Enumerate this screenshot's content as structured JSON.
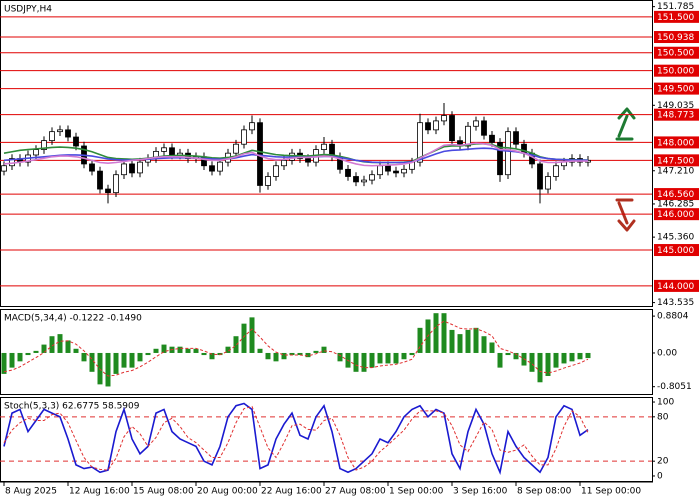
{
  "chart_data": [
    {
      "type": "candlestick",
      "title": "USDJPY,H4",
      "categories": [
        "8 Aug 2025",
        null,
        null,
        null,
        null,
        null,
        null,
        null,
        "12 Aug 16:00",
        null,
        null,
        null,
        null,
        null,
        null,
        null,
        "15 Aug 08:00",
        null,
        null,
        null,
        null,
        null,
        null,
        null,
        "20 Aug 00:00",
        null,
        null,
        null,
        null,
        null,
        null,
        null,
        "22 Aug 16:00",
        null,
        null,
        null,
        null,
        null,
        null,
        null,
        "27 Aug 08:00",
        null,
        null,
        null,
        null,
        null,
        null,
        null,
        "1 Sep 00:00",
        null,
        null,
        null,
        null,
        null,
        null,
        null,
        "3 Sep 16:00",
        null,
        null,
        null,
        null,
        null,
        null,
        null,
        "8 Sep 08:00",
        null,
        null,
        null,
        null,
        null,
        null,
        null,
        "11 Sep 00:00",
        null
      ],
      "open": [
        147.2,
        147.35,
        147.55,
        147.45,
        147.65,
        147.8,
        148.05,
        148.3,
        148.35,
        148.15,
        147.9,
        147.4,
        147.2,
        146.7,
        146.6,
        147.1,
        147.4,
        147.15,
        147.45,
        147.55,
        147.75,
        147.85,
        147.65,
        147.7,
        147.55,
        147.6,
        147.35,
        147.2,
        147.45,
        147.7,
        147.95,
        148.35,
        148.55,
        146.8,
        147.05,
        147.35,
        147.5,
        147.7,
        147.55,
        147.45,
        147.8,
        147.95,
        147.6,
        147.25,
        147.05,
        146.9,
        146.95,
        147.1,
        147.35,
        147.2,
        147.15,
        147.25,
        147.45,
        148.55,
        148.35,
        148.6,
        148.75,
        148.05,
        147.9,
        148.45,
        148.6,
        148.2,
        148.0,
        147.1,
        148.3,
        147.95,
        147.7,
        147.4,
        146.7,
        147.05,
        147.35,
        147.45,
        147.55,
        147.45
      ],
      "high": [
        147.47,
        147.67,
        147.67,
        147.77,
        147.92,
        148.17,
        148.42,
        148.47,
        148.47,
        148.27,
        148.02,
        147.52,
        147.32,
        146.82,
        147.22,
        147.52,
        147.52,
        147.57,
        147.67,
        147.87,
        147.97,
        147.97,
        147.82,
        147.82,
        147.72,
        147.72,
        147.47,
        147.57,
        147.82,
        148.07,
        148.47,
        148.75,
        148.67,
        147.17,
        147.47,
        147.62,
        147.82,
        147.82,
        147.67,
        147.92,
        148.15,
        148.07,
        147.72,
        147.37,
        147.17,
        147.07,
        147.22,
        147.47,
        147.47,
        147.32,
        147.37,
        147.57,
        148.8,
        148.67,
        148.72,
        149.1,
        148.87,
        148.17,
        148.57,
        148.72,
        148.72,
        148.32,
        148.12,
        148.42,
        148.42,
        148.07,
        147.82,
        147.52,
        147.17,
        147.47,
        147.57,
        147.67,
        147.67,
        147.62
      ],
      "low": [
        147.08,
        147.23,
        147.33,
        147.33,
        147.53,
        147.68,
        147.93,
        148.18,
        148.03,
        147.78,
        147.28,
        147.08,
        146.58,
        146.3,
        146.48,
        146.98,
        147.03,
        147.03,
        147.33,
        147.43,
        147.63,
        147.53,
        147.53,
        147.43,
        147.43,
        147.23,
        147.08,
        147.08,
        147.33,
        147.58,
        147.83,
        148.23,
        146.6,
        146.68,
        146.93,
        147.23,
        147.38,
        147.43,
        147.33,
        147.33,
        147.68,
        147.48,
        147.13,
        146.93,
        146.78,
        146.78,
        146.83,
        146.98,
        147.08,
        147.03,
        147.03,
        147.13,
        147.33,
        148.23,
        148.23,
        148.48,
        147.93,
        147.78,
        147.78,
        148.33,
        148.08,
        147.88,
        146.9,
        146.98,
        147.83,
        147.58,
        147.28,
        146.3,
        146.58,
        146.93,
        147.23,
        147.33,
        147.33,
        147.33
      ],
      "close": [
        147.35,
        147.55,
        147.45,
        147.65,
        147.8,
        148.05,
        148.3,
        148.35,
        148.15,
        147.9,
        147.4,
        147.2,
        146.7,
        146.6,
        147.1,
        147.4,
        147.15,
        147.45,
        147.55,
        147.75,
        147.85,
        147.65,
        147.7,
        147.55,
        147.6,
        147.35,
        147.2,
        147.45,
        147.7,
        147.95,
        148.35,
        148.55,
        146.8,
        147.05,
        147.35,
        147.5,
        147.7,
        147.55,
        147.45,
        147.8,
        147.95,
        147.6,
        147.25,
        147.05,
        146.9,
        146.95,
        147.1,
        147.35,
        147.2,
        147.15,
        147.25,
        147.45,
        148.55,
        148.35,
        148.6,
        148.75,
        148.05,
        147.9,
        148.45,
        148.6,
        148.2,
        148.0,
        147.1,
        148.3,
        147.95,
        147.7,
        147.4,
        146.7,
        147.05,
        147.35,
        147.45,
        147.55,
        147.45,
        147.5
      ],
      "up_color": "#ffffff",
      "down_color": "#000000",
      "outline_color": "#000000",
      "series": [
        {
          "type": "line",
          "color": "#2e8b3a",
          "values": [
            147.7,
            147.74,
            147.78,
            147.8,
            147.82,
            147.84,
            147.86,
            147.87,
            147.86,
            147.84,
            147.8,
            147.74,
            147.66,
            147.58,
            147.55,
            147.54,
            147.53,
            147.54,
            147.56,
            147.59,
            147.62,
            147.63,
            147.64,
            147.63,
            147.62,
            147.6,
            147.57,
            147.56,
            147.58,
            147.62,
            147.7,
            147.78,
            147.74,
            147.7,
            147.66,
            147.64,
            147.63,
            147.63,
            147.62,
            147.64,
            147.66,
            147.65,
            147.61,
            147.56,
            147.5,
            147.46,
            147.44,
            147.44,
            147.44,
            147.44,
            147.45,
            147.47,
            147.58,
            147.68,
            147.78,
            147.88,
            147.9,
            147.9,
            147.93,
            147.96,
            147.96,
            147.94,
            147.86,
            147.85,
            147.82,
            147.77,
            147.7,
            147.6,
            147.55,
            147.53,
            147.52,
            147.52,
            147.51,
            147.51
          ]
        },
        {
          "type": "line",
          "color": "#4a4ae0",
          "values": [
            147.5,
            147.52,
            147.54,
            147.56,
            147.58,
            147.6,
            147.62,
            147.64,
            147.65,
            147.65,
            147.64,
            147.62,
            147.58,
            147.54,
            147.52,
            147.51,
            147.51,
            147.52,
            147.53,
            147.55,
            147.56,
            147.57,
            147.57,
            147.57,
            147.56,
            147.55,
            147.54,
            147.53,
            147.54,
            147.57,
            147.62,
            147.66,
            147.64,
            147.62,
            147.6,
            147.59,
            147.59,
            147.59,
            147.59,
            147.6,
            147.61,
            147.61,
            147.58,
            147.54,
            147.5,
            147.47,
            147.45,
            147.44,
            147.44,
            147.44,
            147.44,
            147.46,
            147.52,
            147.6,
            147.68,
            147.75,
            147.78,
            147.79,
            147.81,
            147.83,
            147.84,
            147.83,
            147.78,
            147.76,
            147.74,
            147.7,
            147.65,
            147.58,
            147.55,
            147.53,
            147.52,
            147.51,
            147.51,
            147.5
          ]
        },
        {
          "type": "line",
          "color": "#d27ad2",
          "values": [
            147.4,
            147.42,
            147.45,
            147.48,
            147.52,
            147.56,
            147.6,
            147.62,
            147.62,
            147.6,
            147.56,
            147.5,
            147.44,
            147.42,
            147.44,
            147.47,
            147.5,
            147.52,
            147.55,
            147.58,
            147.6,
            147.6,
            147.6,
            147.58,
            147.56,
            147.53,
            147.5,
            147.5,
            147.54,
            147.6,
            147.68,
            147.72,
            147.62,
            147.55,
            147.52,
            147.53,
            147.56,
            147.58,
            147.58,
            147.6,
            147.62,
            147.6,
            147.54,
            147.46,
            147.4,
            147.36,
            147.35,
            147.36,
            147.37,
            147.38,
            147.4,
            147.44,
            147.56,
            147.68,
            147.8,
            147.92,
            147.94,
            147.92,
            147.95,
            147.98,
            147.96,
            147.92,
            147.8,
            147.8,
            147.76,
            147.7,
            147.6,
            147.48,
            147.44,
            147.44,
            147.46,
            147.48,
            147.48,
            147.48
          ]
        }
      ],
      "ylim": [
        143.44,
        151.97
      ],
      "yticks": [
        {
          "value": 151.785,
          "label": "151.785"
        },
        {
          "value": 149.035,
          "label": "149.035"
        },
        {
          "value": 147.21,
          "label": "147.210"
        },
        {
          "value": 146.285,
          "label": "146.285"
        },
        {
          "value": 145.36,
          "label": "145.360"
        },
        {
          "value": 143.535,
          "label": "143.535"
        }
      ],
      "level_color": "#e00000",
      "levels": [
        {
          "value": 151.5,
          "label": "151.500"
        },
        {
          "value": 150.938,
          "label": "150.938"
        },
        {
          "value": 150.5,
          "label": "150.500"
        },
        {
          "value": 150,
          "label": "150.000"
        },
        {
          "value": 149.5,
          "label": "149.500"
        },
        {
          "value": 148.773,
          "label": "148.773"
        },
        {
          "value": 148,
          "label": "148.000"
        },
        {
          "value": 147.5,
          "label": "147.500"
        },
        {
          "value": 146.56,
          "label": "146.560"
        },
        {
          "value": 146,
          "label": "146.000"
        },
        {
          "value": 145,
          "label": "145.000"
        },
        {
          "value": 144,
          "label": "144.000"
        }
      ]
    },
    {
      "type": "bar",
      "title": "MACD(5,34,4) -0.1222 -0.1490",
      "series": [
        {
          "type": "bar",
          "color": "#1f8a1f",
          "values": [
            -0.5,
            -0.35,
            -0.2,
            -0.05,
            0.05,
            0.2,
            0.4,
            0.45,
            0.3,
            0.1,
            -0.2,
            -0.45,
            -0.75,
            -0.8,
            -0.5,
            -0.35,
            -0.35,
            -0.2,
            -0.05,
            0.1,
            0.2,
            0.15,
            0.15,
            0.1,
            0.1,
            -0.05,
            -0.15,
            -0.05,
            0.15,
            0.4,
            0.7,
            0.85,
            0.1,
            -0.15,
            -0.2,
            -0.15,
            -0.05,
            -0.05,
            -0.1,
            0.05,
            0.15,
            0.0,
            -0.2,
            -0.35,
            -0.45,
            -0.45,
            -0.35,
            -0.25,
            -0.25,
            -0.25,
            -0.15,
            -0.05,
            0.6,
            0.8,
            0.95,
            0.95,
            0.55,
            0.45,
            0.55,
            0.6,
            0.4,
            0.25,
            -0.35,
            -0.05,
            -0.15,
            -0.3,
            -0.45,
            -0.7,
            -0.55,
            -0.35,
            -0.25,
            -0.2,
            -0.15,
            -0.1222
          ]
        },
        {
          "type": "line",
          "color": "#e03030",
          "dash": true,
          "values": [
            -0.45,
            -0.41,
            -0.33,
            -0.22,
            -0.11,
            0.01,
            0.17,
            0.28,
            0.29,
            0.21,
            0.05,
            -0.15,
            -0.39,
            -0.55,
            -0.53,
            -0.46,
            -0.42,
            -0.33,
            -0.22,
            -0.09,
            0.03,
            0.08,
            0.11,
            0.11,
            0.11,
            0.05,
            -0.03,
            -0.04,
            0.04,
            0.18,
            0.39,
            0.57,
            0.38,
            0.17,
            0.02,
            -0.05,
            -0.05,
            -0.05,
            -0.07,
            -0.02,
            0.05,
            0.03,
            -0.06,
            -0.18,
            -0.29,
            -0.35,
            -0.35,
            -0.31,
            -0.29,
            -0.27,
            -0.22,
            -0.15,
            0.15,
            0.41,
            0.63,
            0.76,
            0.68,
            0.59,
            0.57,
            0.58,
            0.51,
            0.41,
            0.11,
            0.05,
            -0.03,
            -0.14,
            -0.26,
            -0.44,
            -0.48,
            -0.43,
            -0.36,
            -0.3,
            -0.24,
            -0.149
          ]
        }
      ],
      "ylim": [
        -0.98,
        1.05
      ],
      "yticks": [
        0.8804,
        {
          "value": 0,
          "label": "0.00"
        },
        -0.8051
      ]
    },
    {
      "type": "line",
      "title": "Stoch(5,3,3) 62.6775 58.5909",
      "series": [
        {
          "type": "line",
          "color": "#1a1ad0",
          "values": [
            40,
            85,
            90,
            60,
            75,
            90,
            85,
            80,
            50,
            15,
            10,
            12,
            5,
            8,
            60,
            90,
            50,
            30,
            40,
            85,
            90,
            60,
            50,
            45,
            40,
            20,
            15,
            40,
            80,
            95,
            98,
            90,
            10,
            15,
            50,
            70,
            85,
            55,
            50,
            80,
            95,
            60,
            10,
            5,
            10,
            20,
            30,
            50,
            45,
            60,
            80,
            90,
            95,
            80,
            90,
            85,
            30,
            10,
            60,
            90,
            70,
            30,
            5,
            60,
            40,
            25,
            15,
            5,
            25,
            80,
            95,
            90,
            55,
            62.6775
          ]
        },
        {
          "type": "line",
          "color": "#e03030",
          "dash": true,
          "values": [
            45,
            62,
            72,
            78,
            75,
            75,
            83,
            85,
            72,
            48,
            25,
            12,
            9,
            8,
            24,
            53,
            67,
            57,
            40,
            52,
            72,
            78,
            67,
            52,
            45,
            35,
            25,
            25,
            45,
            72,
            91,
            94,
            66,
            38,
            25,
            45,
            68,
            70,
            63,
            62,
            75,
            78,
            55,
            25,
            8,
            12,
            20,
            33,
            42,
            52,
            62,
            77,
            88,
            88,
            88,
            85,
            68,
            42,
            33,
            53,
            73,
            63,
            35,
            32,
            35,
            42,
            27,
            15,
            15,
            37,
            67,
            88,
            80,
            58.5909
          ]
        }
      ],
      "ylim": [
        -6.8,
        106.8
      ],
      "yticks": [
        100,
        80,
        20,
        0
      ],
      "level_color": "#e03030",
      "level_dash": true,
      "levels": [
        80,
        20
      ]
    }
  ]
}
